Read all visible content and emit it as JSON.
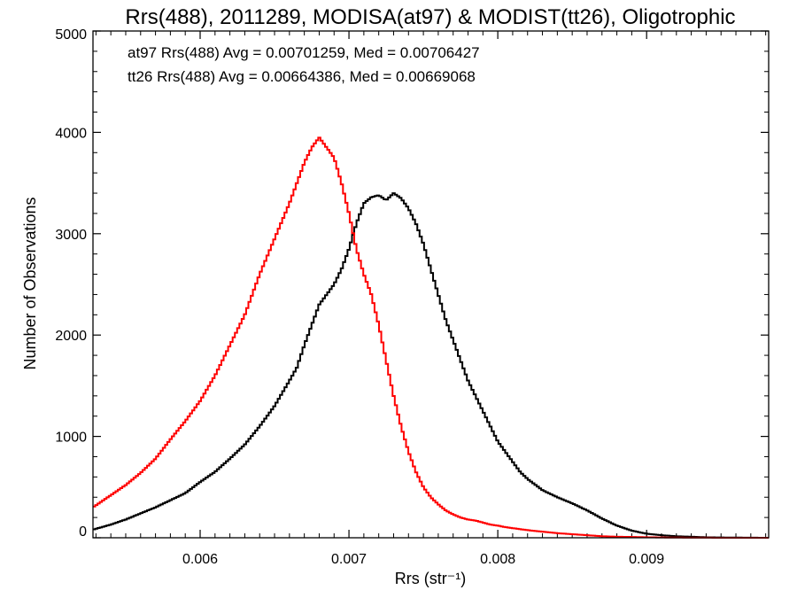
{
  "chart_data": {
    "type": "line",
    "title": "Rrs(488), 2011289, MODISA(at97) & MODIST(tt26), Oligotrophic",
    "xlabel": "Rrs (str⁻¹)",
    "ylabel": "Number of Observations",
    "xlim": [
      0.00528,
      0.00982
    ],
    "ylim": [
      0,
      5000
    ],
    "x_ticks": [
      0.006,
      0.007,
      0.008,
      0.009
    ],
    "x_tick_labels": [
      "0.006",
      "0.007",
      "0.008",
      "0.009"
    ],
    "y_ticks": [
      0,
      1000,
      2000,
      3000,
      4000,
      5000
    ],
    "y_tick_labels": [
      "0",
      "1000",
      "2000",
      "3000",
      "4000",
      "5000"
    ],
    "grid": false,
    "step": true,
    "annotations": [
      {
        "text": "at97 Rrs(488) Avg = 0.00701259, Med = 0.00706427",
        "color": "#000000"
      },
      {
        "text": "tt26 Rrs(488) Avg = 0.00664386, Med = 0.00669068",
        "color": "#ff0000"
      }
    ],
    "series": [
      {
        "color": "#000000",
        "x": [
          0.00528,
          0.0054,
          0.0055,
          0.0056,
          0.0057,
          0.0058,
          0.0059,
          0.006,
          0.0061,
          0.0062,
          0.0063,
          0.0064,
          0.0065,
          0.0066,
          0.00665,
          0.0067,
          0.00675,
          0.0068,
          0.00685,
          0.0069,
          0.00695,
          0.007,
          0.00705,
          0.0071,
          0.00715,
          0.0072,
          0.00725,
          0.0073,
          0.00735,
          0.0074,
          0.00745,
          0.0075,
          0.00755,
          0.0076,
          0.00765,
          0.0077,
          0.00775,
          0.0078,
          0.00785,
          0.0079,
          0.00795,
          0.008,
          0.00805,
          0.0081,
          0.00815,
          0.0082,
          0.0083,
          0.0084,
          0.0085,
          0.0086,
          0.0087,
          0.0088,
          0.0089,
          0.009,
          0.0091,
          0.0092,
          0.0093,
          0.0094,
          0.0095,
          0.0096,
          0.0097,
          0.00982
        ],
        "y": [
          80,
          130,
          180,
          240,
          300,
          370,
          440,
          550,
          650,
          780,
          920,
          1100,
          1300,
          1550,
          1680,
          1900,
          2100,
          2300,
          2400,
          2500,
          2650,
          2850,
          3100,
          3300,
          3360,
          3380,
          3330,
          3400,
          3350,
          3250,
          3100,
          2900,
          2650,
          2400,
          2150,
          1950,
          1750,
          1550,
          1400,
          1250,
          1100,
          950,
          850,
          750,
          650,
          580,
          470,
          400,
          340,
          270,
          190,
          120,
          70,
          40,
          25,
          15,
          10,
          5,
          3,
          2,
          1,
          0
        ]
      },
      {
        "color": "#ff0000",
        "x": [
          0.00528,
          0.0054,
          0.0055,
          0.0056,
          0.0057,
          0.0058,
          0.0059,
          0.006,
          0.0061,
          0.0062,
          0.0063,
          0.0064,
          0.0065,
          0.0066,
          0.00665,
          0.0067,
          0.00675,
          0.0068,
          0.00685,
          0.0069,
          0.00695,
          0.007,
          0.00705,
          0.0071,
          0.00715,
          0.0072,
          0.00725,
          0.0073,
          0.00735,
          0.0074,
          0.00745,
          0.0075,
          0.00755,
          0.0076,
          0.00765,
          0.0077,
          0.00775,
          0.0078,
          0.00785,
          0.0079,
          0.00795,
          0.008,
          0.00805,
          0.0081,
          0.00815,
          0.0082,
          0.0083,
          0.0084,
          0.0085,
          0.0086,
          0.0087,
          0.0088,
          0.0089,
          0.009,
          0.0091,
          0.0092,
          0.0093,
          0.0094,
          0.0095,
          0.0096,
          0.0097,
          0.00982
        ],
        "y": [
          300,
          420,
          520,
          640,
          780,
          970,
          1150,
          1350,
          1600,
          1900,
          2200,
          2600,
          2950,
          3300,
          3500,
          3700,
          3850,
          3950,
          3850,
          3750,
          3500,
          3200,
          2850,
          2600,
          2400,
          2100,
          1750,
          1400,
          1100,
          850,
          650,
          500,
          400,
          330,
          270,
          230,
          200,
          180,
          170,
          150,
          130,
          120,
          105,
          95,
          85,
          75,
          60,
          45,
          35,
          25,
          15,
          10,
          8,
          5,
          3,
          2,
          1,
          1,
          0,
          0,
          0,
          0
        ]
      }
    ]
  }
}
